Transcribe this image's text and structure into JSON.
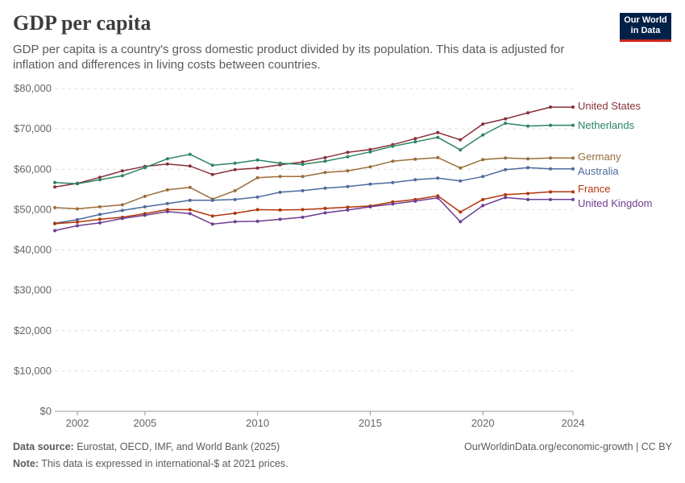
{
  "header": {
    "title": "GDP per capita",
    "subtitle": "GDP per capita is a country's gross domestic product divided by its population. This data is adjusted for inflation and differences in living costs between countries.",
    "logo_line1": "Our World",
    "logo_line2": "in Data"
  },
  "footer": {
    "source_label": "Data source:",
    "source_text": "Eurostat, OECD, IMF, and World Bank (2025)",
    "note_label": "Note:",
    "note_text": "This data is expressed in international-$ at 2021 prices.",
    "attribution": "OurWorldinData.org/economic-growth | CC BY"
  },
  "colors": {
    "background": "#ffffff",
    "gridline": "#dddddd",
    "axis": "#999999"
  },
  "chart_data": {
    "type": "line",
    "title": "GDP per capita",
    "xlabel": "",
    "ylabel": "",
    "xlim": [
      2001,
      2024
    ],
    "ylim": [
      0,
      80000
    ],
    "x_ticks": [
      2002,
      2005,
      2010,
      2015,
      2020,
      2024
    ],
    "x_tick_labels": [
      "2002",
      "2005",
      "2010",
      "2015",
      "2020",
      "2024"
    ],
    "y_ticks": [
      0,
      10000,
      20000,
      30000,
      40000,
      50000,
      60000,
      70000,
      80000
    ],
    "y_tick_labels": [
      "$0",
      "$10,000",
      "$20,000",
      "$30,000",
      "$40,000",
      "$50,000",
      "$60,000",
      "$70,000",
      "$80,000"
    ],
    "grid": "horizontal dashed",
    "legend": "end-of-line labels",
    "x": [
      2001,
      2002,
      2003,
      2004,
      2005,
      2006,
      2007,
      2008,
      2009,
      2010,
      2011,
      2012,
      2013,
      2014,
      2015,
      2016,
      2017,
      2018,
      2019,
      2020,
      2021,
      2022,
      2023,
      2024
    ],
    "series": [
      {
        "name": "United States",
        "color": "#883039",
        "values": [
          55600,
          56500,
          58000,
          59600,
          60700,
          61300,
          60800,
          58700,
          59900,
          60300,
          61100,
          61800,
          62900,
          64200,
          64900,
          66100,
          67600,
          69100,
          67300,
          71200,
          72500,
          74000,
          75400,
          75400
        ]
      },
      {
        "name": "Netherlands",
        "color": "#2c8465",
        "values": [
          56700,
          56400,
          57400,
          58400,
          60400,
          62600,
          63700,
          61000,
          61500,
          62300,
          61500,
          61200,
          62000,
          63100,
          64300,
          65700,
          66800,
          67900,
          64800,
          68500,
          71400,
          70700,
          70900,
          70900
        ]
      },
      {
        "name": "Germany",
        "color": "#996d39",
        "values": [
          50500,
          50200,
          50700,
          51200,
          53300,
          54900,
          55500,
          52600,
          54700,
          57900,
          58200,
          58200,
          59200,
          59600,
          60600,
          62000,
          62500,
          62900,
          60300,
          62400,
          62800,
          62600,
          62800,
          62800
        ]
      },
      {
        "name": "Australia",
        "color": "#4c6a9c",
        "values": [
          46600,
          47500,
          48800,
          49800,
          50700,
          51500,
          52300,
          52300,
          52500,
          53100,
          54300,
          54700,
          55300,
          55700,
          56300,
          56700,
          57400,
          57800,
          57100,
          58200,
          59900,
          60400,
          60100,
          60100
        ]
      },
      {
        "name": "France",
        "color": "#b13507",
        "values": [
          46500,
          46900,
          47600,
          48100,
          49000,
          50000,
          50000,
          48400,
          49100,
          50000,
          49900,
          50000,
          50300,
          50600,
          50900,
          51900,
          52500,
          53400,
          49400,
          52500,
          53700,
          54000,
          54400,
          54400
        ]
      },
      {
        "name": "United Kingdom",
        "color": "#6d3e91",
        "values": [
          44800,
          46000,
          46700,
          47800,
          48600,
          49500,
          49000,
          46400,
          47000,
          47100,
          47600,
          48100,
          49200,
          49900,
          50700,
          51400,
          52100,
          52900,
          47000,
          51000,
          53000,
          52500,
          52500,
          52500
        ]
      }
    ]
  }
}
